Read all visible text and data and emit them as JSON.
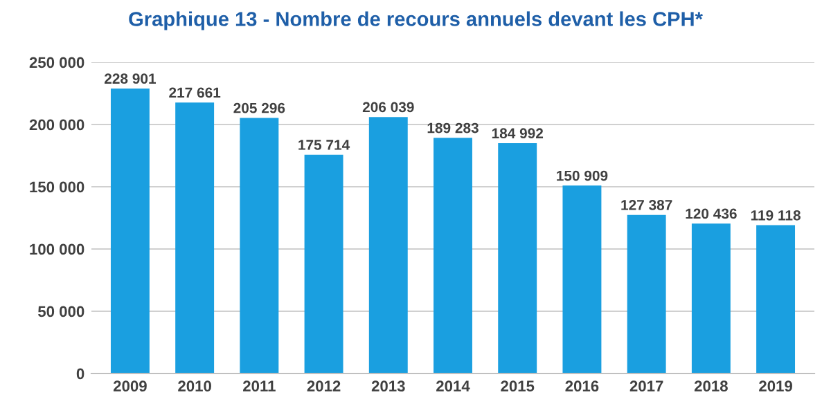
{
  "chart_data": {
    "type": "bar",
    "title": "Graphique 13 - Nombre de recours annuels devant les CPH*",
    "categories": [
      "2009",
      "2010",
      "2011",
      "2012",
      "2013",
      "2014",
      "2015",
      "2016",
      "2017",
      "2018",
      "2019"
    ],
    "values": [
      228901,
      217661,
      205296,
      175714,
      206039,
      189283,
      184992,
      150909,
      127387,
      120436,
      119118
    ],
    "value_labels": [
      "228 901",
      "217 661",
      "205 296",
      "175 714",
      "206 039",
      "189 283",
      "184 992",
      "150 909",
      "127 387",
      "120 436",
      "119 118"
    ],
    "color": "#1a9fe0",
    "ylim": [
      0,
      250000
    ],
    "yticks": [
      {
        "value": 0,
        "label": "0"
      },
      {
        "value": 50000,
        "label": "50 000"
      },
      {
        "value": 100000,
        "label": "100 000"
      },
      {
        "value": 150000,
        "label": "150 000"
      },
      {
        "value": 200000,
        "label": "200 000"
      },
      {
        "value": 250000,
        "label": "250 000"
      }
    ],
    "grid": "y",
    "legend": false
  }
}
